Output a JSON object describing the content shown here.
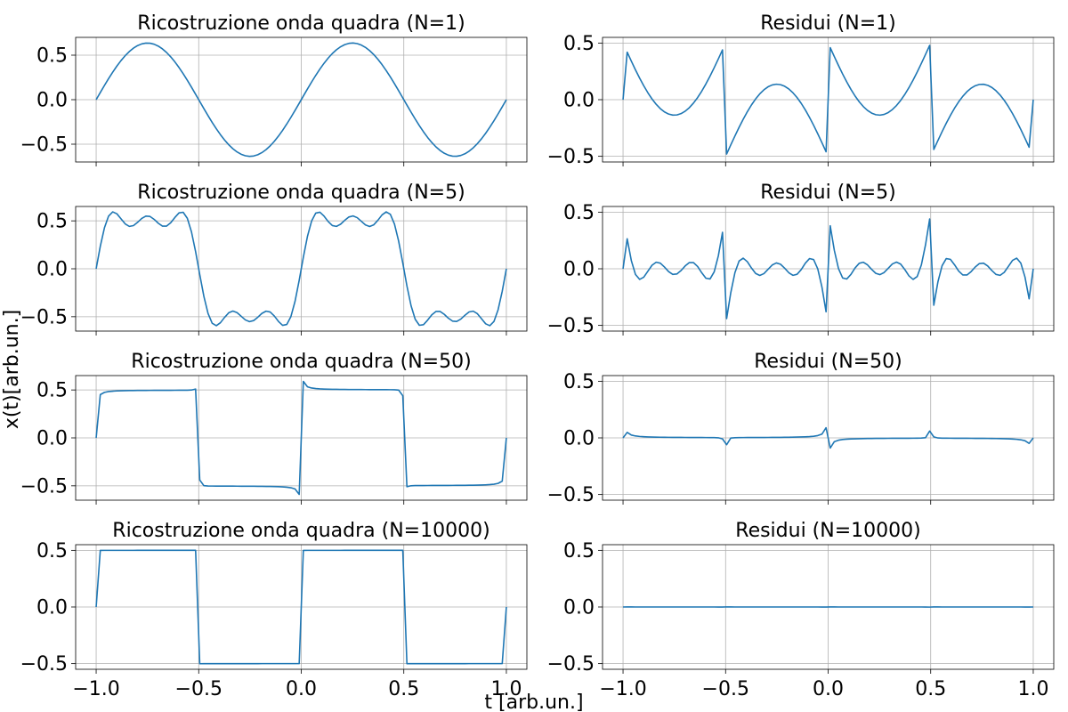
{
  "figure": {
    "ylabel": "x(t)[arb.un.]",
    "xlabel": "t  [arb.un.]",
    "line_color": "#1f77b4",
    "grid_color": "#b0b0b0",
    "grid": true,
    "xticks": [
      -1.0,
      -0.5,
      0.0,
      0.5,
      1.0
    ]
  },
  "chart_data": [
    {
      "type": "line",
      "title": "Ricostruzione onda quadra (N=1)",
      "kind": "reconstruction",
      "N": 1,
      "x_range": [
        -1,
        1
      ],
      "xlim": [
        -1.1,
        1.1
      ],
      "ylim": [
        -0.7,
        0.7
      ],
      "yticks": [
        -0.5,
        0.0,
        0.5
      ],
      "show_xticklabels": false
    },
    {
      "type": "line",
      "title": "Residui (N=1)",
      "kind": "residual",
      "N": 1,
      "x_range": [
        -1,
        1
      ],
      "xlim": [
        -1.1,
        1.1
      ],
      "ylim": [
        -0.55,
        0.55
      ],
      "yticks": [
        -0.5,
        0.0,
        0.5
      ],
      "show_xticklabels": false
    },
    {
      "type": "line",
      "title": "Ricostruzione onda quadra (N=5)",
      "kind": "reconstruction",
      "N": 5,
      "x_range": [
        -1,
        1
      ],
      "xlim": [
        -1.1,
        1.1
      ],
      "ylim": [
        -0.65,
        0.65
      ],
      "yticks": [
        -0.5,
        0.0,
        0.5
      ],
      "show_xticklabels": false
    },
    {
      "type": "line",
      "title": "Residui (N=5)",
      "kind": "residual",
      "N": 5,
      "x_range": [
        -1,
        1
      ],
      "xlim": [
        -1.1,
        1.1
      ],
      "ylim": [
        -0.55,
        0.55
      ],
      "yticks": [
        -0.5,
        0.0,
        0.5
      ],
      "show_xticklabels": false
    },
    {
      "type": "line",
      "title": "Ricostruzione onda quadra (N=50)",
      "kind": "reconstruction",
      "N": 50,
      "x_range": [
        -1,
        1
      ],
      "xlim": [
        -1.1,
        1.1
      ],
      "ylim": [
        -0.65,
        0.65
      ],
      "yticks": [
        -0.5,
        0.0,
        0.5
      ],
      "show_xticklabels": false
    },
    {
      "type": "line",
      "title": "Residui (N=50)",
      "kind": "residual",
      "N": 50,
      "x_range": [
        -1,
        1
      ],
      "xlim": [
        -1.1,
        1.1
      ],
      "ylim": [
        -0.55,
        0.55
      ],
      "yticks": [
        -0.5,
        0.0,
        0.5
      ],
      "show_xticklabels": false
    },
    {
      "type": "line",
      "title": "Ricostruzione onda quadra (N=10000)",
      "kind": "reconstruction",
      "N": 10000,
      "x_range": [
        -1,
        1
      ],
      "xlim": [
        -1.1,
        1.1
      ],
      "ylim": [
        -0.55,
        0.55
      ],
      "yticks": [
        -0.5,
        0.0,
        0.5
      ],
      "show_xticklabels": true
    },
    {
      "type": "line",
      "title": "Residui (N=10000)",
      "kind": "residual",
      "N": 10000,
      "x_range": [
        -1,
        1
      ],
      "xlim": [
        -1.1,
        1.1
      ],
      "ylim": [
        -0.55,
        0.55
      ],
      "yticks": [
        -0.5,
        0.0,
        0.5
      ],
      "show_xticklabels": true
    }
  ]
}
